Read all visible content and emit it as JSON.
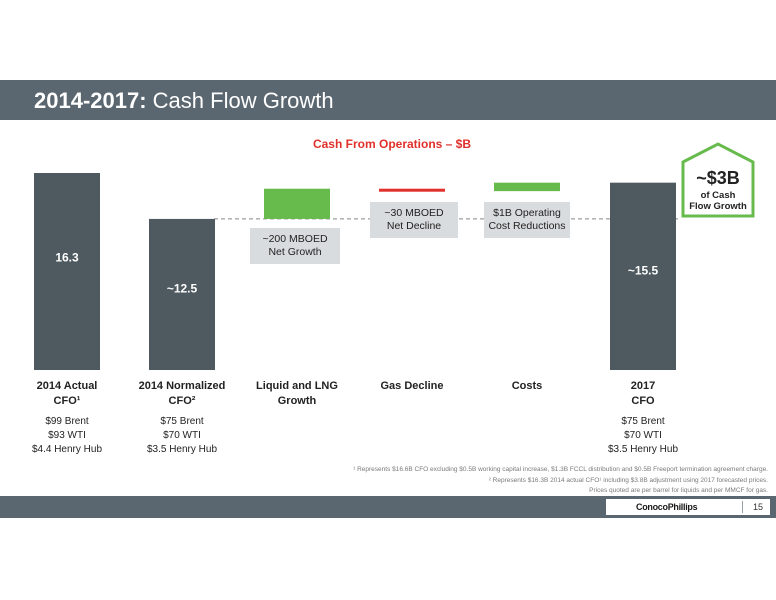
{
  "header": {
    "title_bold": "2014-2017:",
    "title_rest": "Cash Flow Growth"
  },
  "colors": {
    "header": "#5b6770",
    "bar_total": "#4e5a60",
    "bar_increase": "#66bb4c",
    "bar_decrease": "#e0302b",
    "note_box": "#d9dcde",
    "chart_title": "#e0302b",
    "callout": "#66bb4c"
  },
  "chart_data": {
    "type": "waterfall",
    "title": "Cash From Operations – $B",
    "categories": [
      "2014 Actual CFO¹",
      "2014 Normalized CFO²",
      "Liquid and LNG Growth",
      "Gas Decline",
      "Costs",
      "2017 CFO"
    ],
    "category_lines": [
      [
        "2014 Actual",
        "CFO¹"
      ],
      [
        "2014 Normalized",
        "CFO²"
      ],
      [
        "Liquid and LNG",
        "Growth"
      ],
      [
        "Gas Decline"
      ],
      [
        "Costs"
      ],
      [
        "2017",
        "CFO"
      ]
    ],
    "bars": [
      {
        "kind": "total",
        "base": 0,
        "value": 16.3,
        "label": "16.3"
      },
      {
        "kind": "total",
        "base": 0,
        "value": 12.5,
        "label": "~12.5"
      },
      {
        "kind": "increase",
        "base": 12.5,
        "value": 2.5,
        "note": [
          "~200 MBOED",
          "Net Growth"
        ]
      },
      {
        "kind": "decrease",
        "base": 15.0,
        "value": 0.2,
        "note": [
          "~30 MBOED",
          "Net Decline"
        ]
      },
      {
        "kind": "increase",
        "base": 14.8,
        "value": 0.7,
        "note": [
          "$1B Operating",
          "Cost Reductions"
        ]
      },
      {
        "kind": "total",
        "base": 0,
        "value": 15.5,
        "label": "~15.5"
      }
    ],
    "reference_line": 12.5,
    "ylim": [
      0,
      16.3
    ],
    "callout": {
      "value": "~$3B",
      "lines": [
        "of Cash",
        "Flow Growth"
      ]
    },
    "price_notes": [
      [
        "$99 Brent",
        "$93 WTI",
        "$4.4 Henry Hub"
      ],
      [
        "$75 Brent",
        "$70 WTI",
        "$3.5 Henry Hub"
      ],
      [],
      [],
      [],
      [
        "$75 Brent",
        "$70 WTI",
        "$3.5 Henry Hub"
      ]
    ]
  },
  "footnotes": [
    "¹ Represents $16.6B CFO excluding $0.5B working capital increase, $1.3B FCCL distribution and $0.5B Freeport termination agreement charge.",
    "² Represents $16.3B 2014 actual CFO¹ including $3.8B adjustment using 2017 forecasted prices.",
    "Prices quoted are per barrel for liquids and per MMCF for gas."
  ],
  "footer": {
    "logo": "ConocoPhillips",
    "page": "15"
  }
}
